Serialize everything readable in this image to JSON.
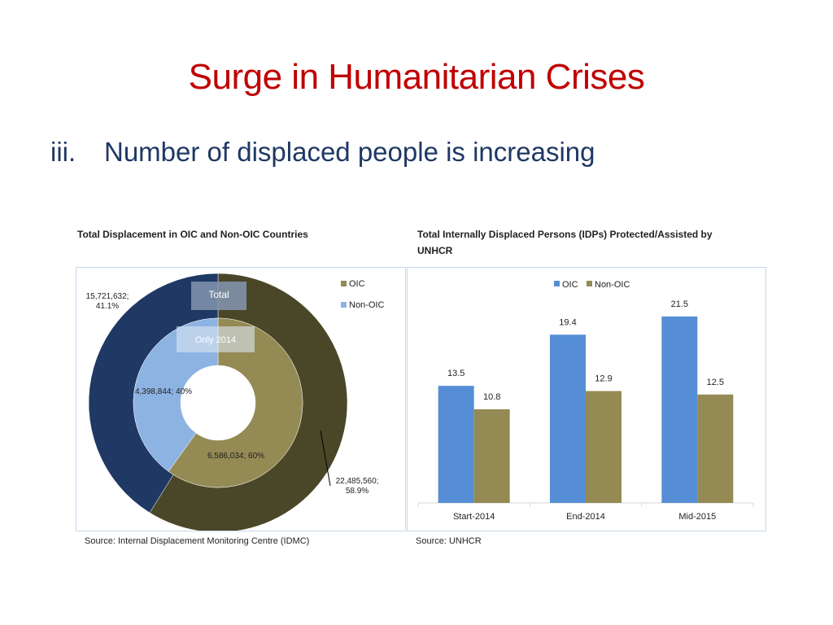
{
  "slide": {
    "title": "Surge in Humanitarian Crises",
    "subtitle_number": "iii.",
    "subtitle_text": "Number of displaced people is increasing"
  },
  "sources": {
    "left": "Source: Internal Displacement Monitoring Centre (IDMC)",
    "right": "Source: UNHCR"
  },
  "colors": {
    "title": "#c00000",
    "subtitle": "#1f3864",
    "oic_outer": "#1f3864",
    "nonoic_outer": "#4a4729",
    "oic_inner": "#8db3e2",
    "nonoic_inner": "#948a54",
    "bar_oic": "#558ed5",
    "bar_nonoic": "#948a54"
  },
  "chart_data": [
    {
      "type": "pie",
      "variant": "doughnut",
      "title": "Total Displacement in OIC and Non-OIC Countries",
      "legend": [
        "OIC",
        "Non-OIC"
      ],
      "legend_position": "top-right",
      "rings": [
        {
          "name": "Total",
          "slices": [
            {
              "label": "OIC",
              "value": 15721632,
              "percent": 41.1,
              "text": "15,721,632;\n41.1%"
            },
            {
              "label": "Non-OIC",
              "value": 22485560,
              "percent": 58.9,
              "text": "22,485,560;\n58.9%"
            }
          ]
        },
        {
          "name": "Only 2014",
          "slices": [
            {
              "label": "OIC",
              "value": 4398844,
              "percent": 40,
              "text": "4,398,844; 40%"
            },
            {
              "label": "Non-OIC",
              "value": 6586034,
              "percent": 60,
              "text": "6,586,034; 60%"
            }
          ]
        }
      ]
    },
    {
      "type": "bar",
      "title": "Total Internally Displaced Persons (IDPs) Protected/Assisted by UNHCR",
      "categories": [
        "Start-2014",
        "End-2014",
        "Mid-2015"
      ],
      "series": [
        {
          "name": "OIC",
          "values": [
            13.5,
            19.4,
            21.5
          ]
        },
        {
          "name": "Non-OIC",
          "values": [
            10.8,
            12.9,
            12.5
          ]
        }
      ],
      "ylim": [
        0,
        25
      ],
      "grid": false,
      "legend_position": "top"
    }
  ]
}
